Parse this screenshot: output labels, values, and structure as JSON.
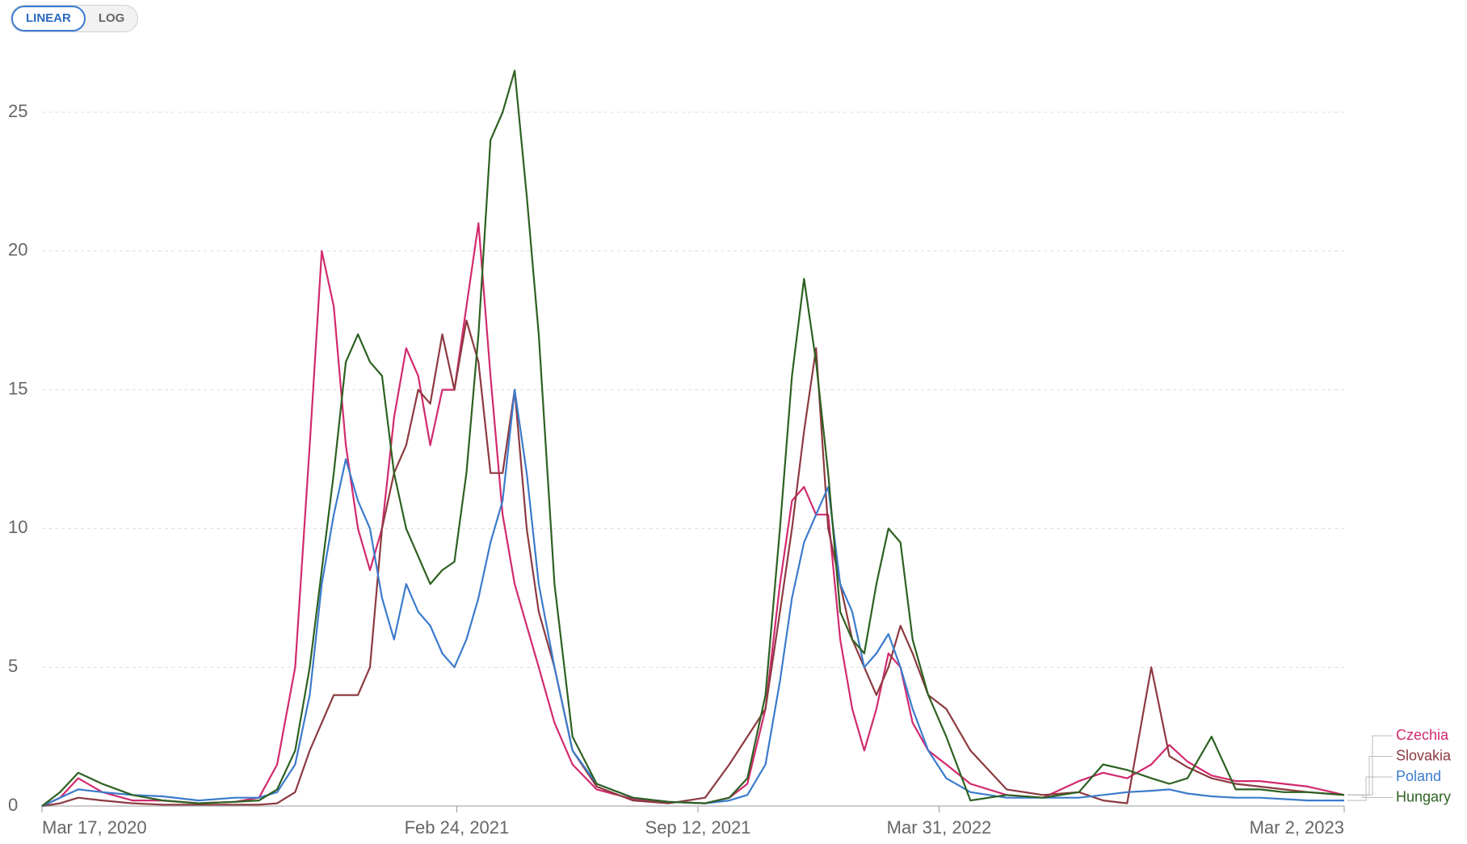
{
  "chart_data": {
    "type": "line",
    "scale_buttons": [
      "LINEAR",
      "LOG"
    ],
    "log_scale": false,
    "grid": true,
    "x": [
      "2020-03-17",
      "2020-04-01",
      "2020-04-16",
      "2020-05-06",
      "2020-05-31",
      "2020-06-25",
      "2020-07-25",
      "2020-08-24",
      "2020-09-13",
      "2020-09-28",
      "2020-10-13",
      "2020-10-25",
      "2020-11-04",
      "2020-11-14",
      "2020-11-24",
      "2020-12-04",
      "2020-12-14",
      "2020-12-24",
      "2021-01-03",
      "2021-01-13",
      "2021-01-23",
      "2021-02-02",
      "2021-02-12",
      "2021-02-22",
      "2021-03-04",
      "2021-03-14",
      "2021-03-24",
      "2021-04-03",
      "2021-04-13",
      "2021-04-23",
      "2021-05-03",
      "2021-05-16",
      "2021-05-31",
      "2021-06-20",
      "2021-07-20",
      "2021-08-19",
      "2021-09-18",
      "2021-10-08",
      "2021-10-23",
      "2021-11-07",
      "2021-11-19",
      "2021-11-29",
      "2021-12-09",
      "2021-12-19",
      "2021-12-29",
      "2022-01-08",
      "2022-01-18",
      "2022-01-28",
      "2022-02-07",
      "2022-02-17",
      "2022-02-27",
      "2022-03-09",
      "2022-03-22",
      "2022-04-06",
      "2022-04-26",
      "2022-05-26",
      "2022-06-25",
      "2022-07-25",
      "2022-08-14",
      "2022-09-03",
      "2022-09-23",
      "2022-10-08",
      "2022-10-23",
      "2022-11-12",
      "2022-12-02",
      "2022-12-22",
      "2023-01-11",
      "2023-01-31",
      "2023-03-02"
    ],
    "xlim": [
      "2020-03-17",
      "2023-03-02"
    ],
    "xticks": [
      {
        "value": "2020-03-17",
        "label": "Mar 17, 2020"
      },
      {
        "value": "2021-02-24",
        "label": "Feb 24, 2021"
      },
      {
        "value": "2021-09-12",
        "label": "Sep 12, 2021"
      },
      {
        "value": "2022-03-31",
        "label": "Mar 31, 2022"
      },
      {
        "value": "2023-03-02",
        "label": "Mar 2, 2023"
      }
    ],
    "ylim": [
      0,
      25
    ],
    "yticks": [
      0,
      5,
      10,
      15,
      20,
      25
    ],
    "series": [
      {
        "name": "Czechia",
        "color": "#d12a6e",
        "values": [
          0,
          0.3,
          1.0,
          0.5,
          0.2,
          0.2,
          0.1,
          0.15,
          0.3,
          1.5,
          5,
          13,
          20,
          18,
          13,
          10,
          8.5,
          10,
          14,
          16.5,
          15.5,
          13,
          15,
          15,
          18,
          21,
          15.5,
          10.5,
          8,
          6.5,
          5,
          3,
          1.5,
          0.6,
          0.25,
          0.15,
          0.1,
          0.3,
          0.8,
          3.5,
          8,
          11,
          11.5,
          10.5,
          10.5,
          6,
          3.5,
          2,
          3.5,
          5.5,
          5,
          3,
          2,
          1.5,
          0.8,
          0.4,
          0.3,
          0.9,
          1.2,
          1.0,
          1.5,
          2.2,
          1.6,
          1.1,
          0.9,
          0.9,
          0.8,
          0.7,
          0.4
        ]
      },
      {
        "name": "Slovakia",
        "color": "#8c3a40",
        "values": [
          0,
          0.1,
          0.3,
          0.2,
          0.1,
          0.05,
          0.05,
          0.05,
          0.05,
          0.1,
          0.5,
          2,
          3,
          4,
          4,
          4,
          5,
          10,
          12,
          13,
          15,
          14.5,
          17,
          15,
          17.5,
          16,
          12,
          12,
          15,
          10,
          7,
          5,
          2,
          0.7,
          0.2,
          0.1,
          0.3,
          1.5,
          2.5,
          3.5,
          7,
          10,
          13.5,
          16.5,
          10,
          8,
          6,
          5,
          4,
          5,
          6.5,
          5.5,
          4,
          3.5,
          2,
          0.6,
          0.4,
          0.5,
          0.2,
          0.1,
          5.0,
          1.8,
          1.4,
          1.0,
          0.8,
          0.7,
          0.6,
          0.5,
          0.4
        ]
      },
      {
        "name": "Poland",
        "color": "#3b7bcc",
        "values": [
          0,
          0.3,
          0.6,
          0.5,
          0.4,
          0.35,
          0.2,
          0.3,
          0.3,
          0.5,
          1.5,
          4,
          8,
          10.5,
          12.5,
          11,
          10,
          7.5,
          6,
          8,
          7,
          6.5,
          5.5,
          5,
          6,
          7.5,
          9.5,
          11,
          15,
          12,
          8,
          5,
          2,
          0.8,
          0.3,
          0.15,
          0.1,
          0.2,
          0.4,
          1.5,
          4.5,
          7.5,
          9.5,
          10.5,
          11.5,
          8,
          7,
          5,
          5.5,
          6.2,
          5,
          3.5,
          2,
          1,
          0.5,
          0.3,
          0.3,
          0.3,
          0.4,
          0.5,
          0.55,
          0.6,
          0.45,
          0.35,
          0.3,
          0.3,
          0.25,
          0.2,
          0.2
        ]
      },
      {
        "name": "Hungary",
        "color": "#2d6121",
        "values": [
          0,
          0.5,
          1.2,
          0.8,
          0.4,
          0.2,
          0.1,
          0.15,
          0.2,
          0.6,
          2,
          5,
          8.5,
          12,
          16,
          17,
          16,
          15.5,
          12,
          10,
          9,
          8,
          8.5,
          8.8,
          12,
          17,
          24,
          25,
          26.5,
          22,
          17,
          8,
          2.5,
          0.8,
          0.3,
          0.15,
          0.1,
          0.3,
          1.0,
          4,
          10,
          15.5,
          19,
          16,
          12,
          7,
          6,
          5.5,
          8,
          10,
          9.5,
          6,
          4,
          2.5,
          0.2,
          0.4,
          0.3,
          0.5,
          1.5,
          1.3,
          1.0,
          0.8,
          1.0,
          2.5,
          0.6,
          0.6,
          0.5,
          0.5,
          0.4
        ]
      }
    ]
  }
}
